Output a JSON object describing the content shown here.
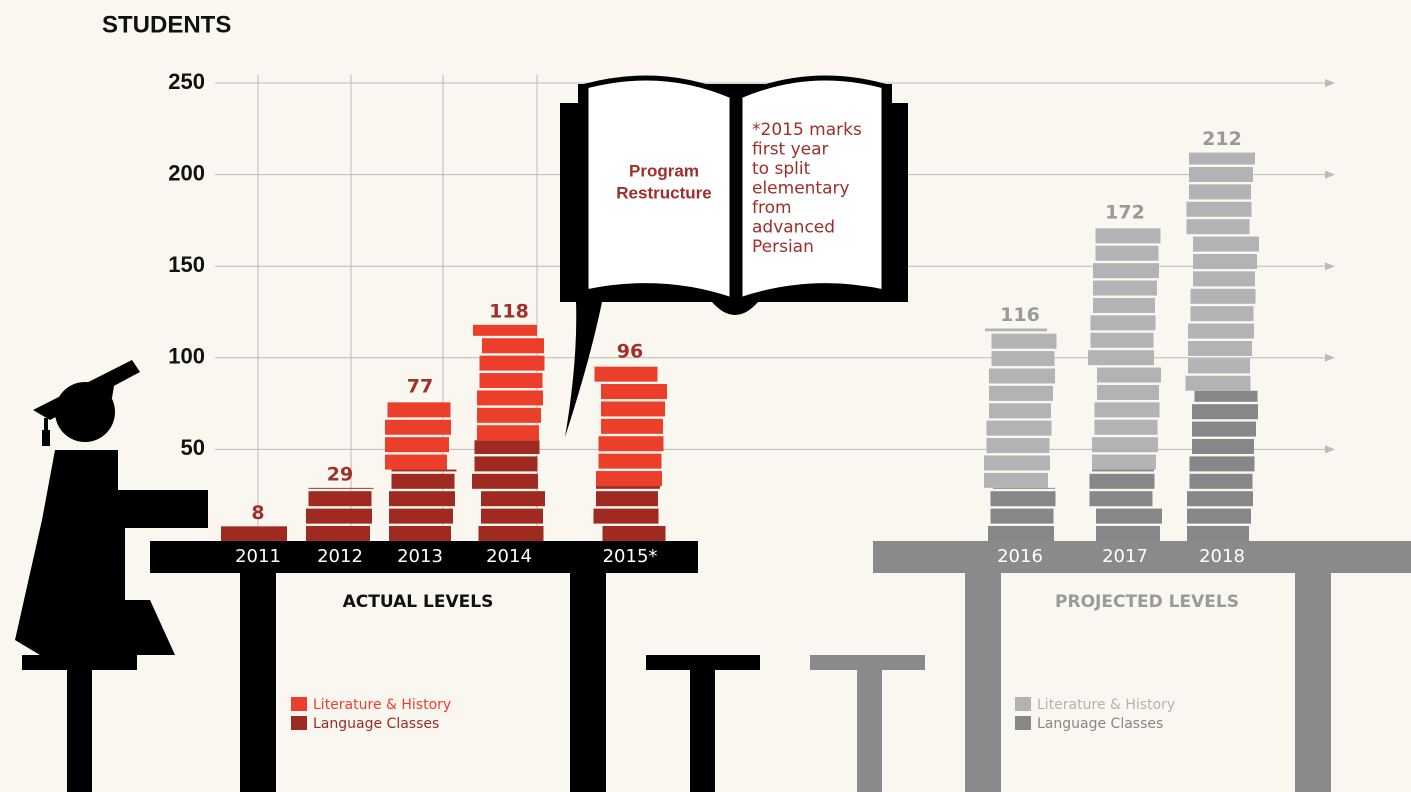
{
  "chart_data": [
    {
      "type": "bar",
      "stacked": true,
      "ylabel": "STUDENTS",
      "xlabel": "ACTUAL LEVELS",
      "categories": [
        "2011",
        "2012",
        "2013",
        "2014",
        "2015*"
      ],
      "series": [
        {
          "name": "Literature & History",
          "color": "#ec3f2b",
          "values": [
            0,
            0,
            38,
            63,
            66
          ]
        },
        {
          "name": "Language Classes",
          "color": "#9e2a22",
          "values": [
            8,
            29,
            39,
            55,
            30
          ]
        }
      ],
      "totals": [
        8,
        29,
        77,
        118,
        96
      ],
      "total_color": "#a0302a",
      "label_color": "#111111",
      "ylim": [
        0,
        250
      ],
      "yticks": [
        50,
        100,
        150,
        200,
        250
      ],
      "grid": true,
      "annotation": {
        "title": [
          "Program",
          "Restructure"
        ],
        "note": [
          "*2015 marks",
          "first year",
          "to split",
          "elementary",
          "from",
          "advanced",
          "Persian"
        ]
      }
    },
    {
      "type": "bar",
      "stacked": true,
      "xlabel": "PROJECTED LEVELS",
      "categories": [
        "2016",
        "2017",
        "2018"
      ],
      "series": [
        {
          "name": "Literature & History",
          "color": "#b3b3b5",
          "values": [
            87,
            133,
            130
          ]
        },
        {
          "name": "Language Classes",
          "color": "#87878a",
          "values": [
            29,
            39,
            82
          ]
        }
      ],
      "totals": [
        116,
        172,
        212
      ],
      "total_color": "#9a9a9c",
      "label_color": "#9a9a9c",
      "ylim": [
        0,
        250
      ]
    }
  ]
}
